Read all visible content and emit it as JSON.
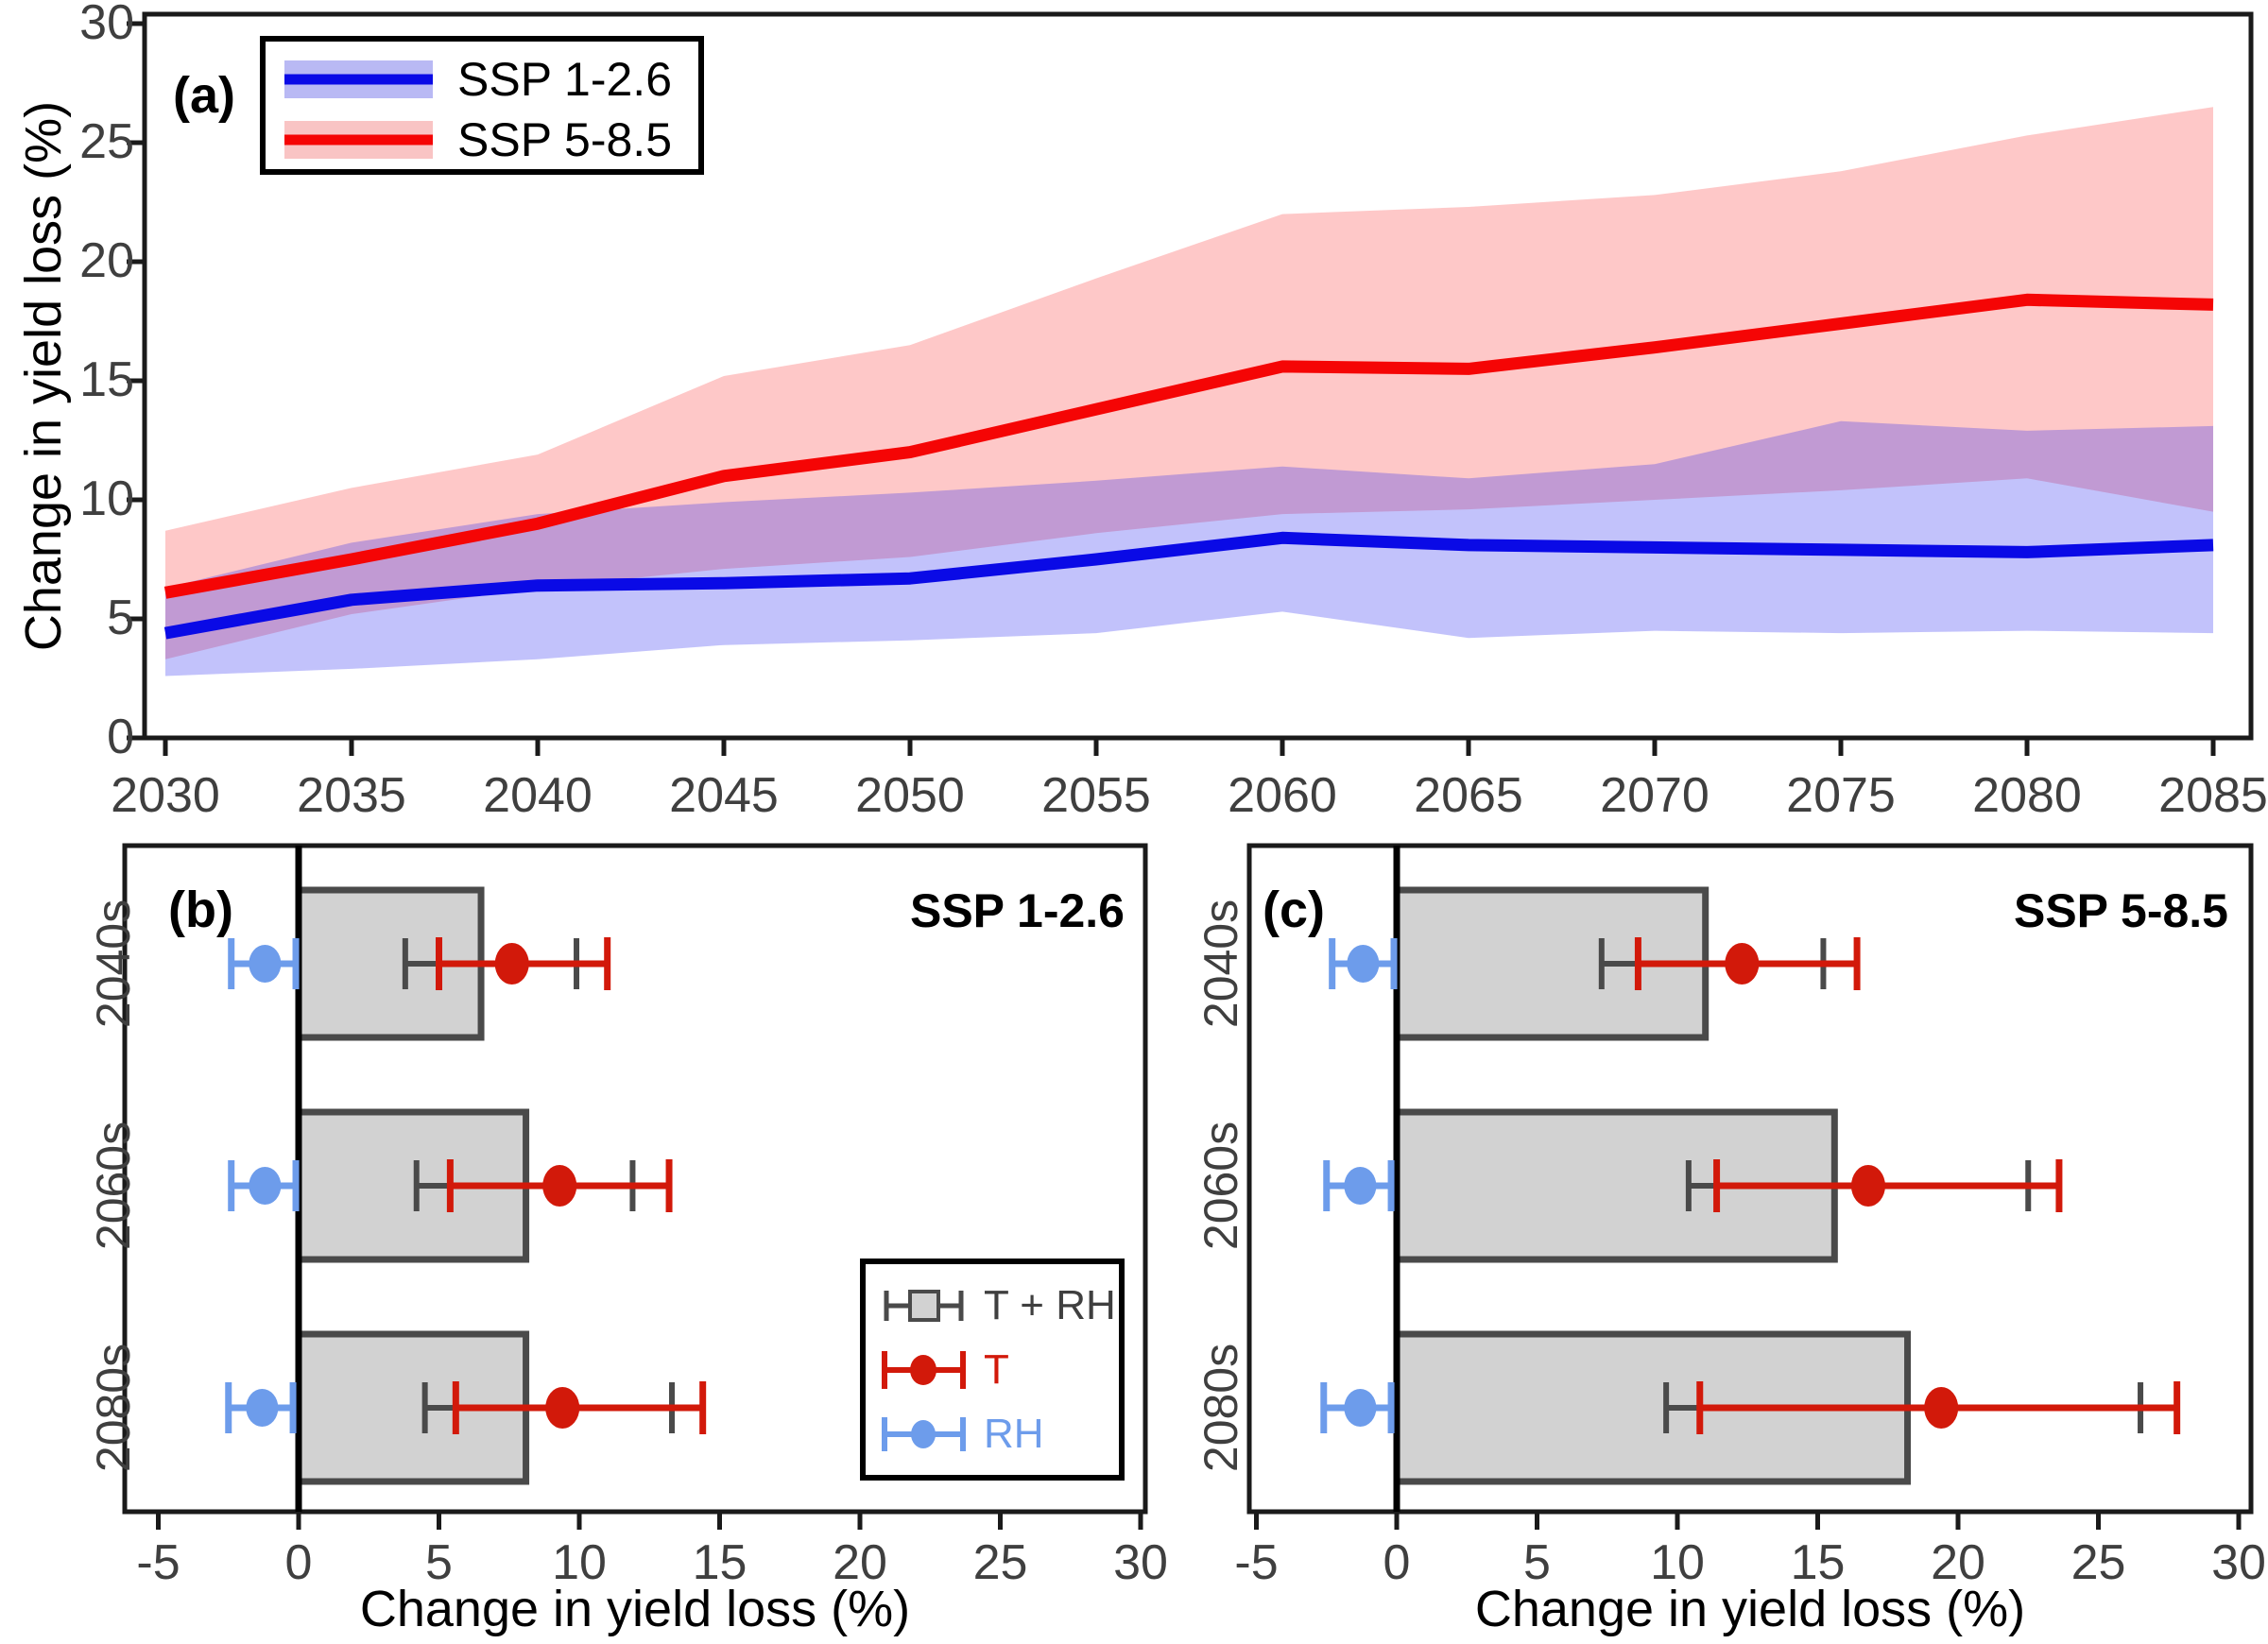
{
  "figure": {
    "background": "#ffffff",
    "ylabel_shared": "Change in yield loss (%)"
  },
  "colors": {
    "ssp126_line": "#0a0ae6",
    "ssp126_band": "rgba(30,30,240,0.27)",
    "ssp126_band_solid": "#b9b9f4",
    "ssp585_line": "#f50505",
    "ssp585_band": "rgba(250,25,25,0.24)",
    "ssp585_band_solid": "#f9c4c4",
    "bar_fill": "#d2d2d2",
    "bar_border": "#4a4a4a",
    "gray_whisker": "#4a4a4a",
    "t_color": "#d2190a",
    "rh_color": "#6d9ceb",
    "axis": "#1a1a1a",
    "tick_label": "#3f3f3f"
  },
  "chart_data": [
    {
      "id": "a",
      "type": "line-with-bands",
      "panel_label": "(a)",
      "ylabel": "Change in yield loss (%)",
      "x_ticks": [
        2030,
        2035,
        2040,
        2045,
        2050,
        2055,
        2060,
        2065,
        2070,
        2075,
        2080,
        2085
      ],
      "y_ticks": [
        0,
        5,
        10,
        15,
        20,
        25,
        30
      ],
      "xlim": [
        2029.4,
        2086.0
      ],
      "ylim": [
        0,
        30.4
      ],
      "grid": "off",
      "legend_position": "top-left",
      "x": [
        2030,
        2035,
        2040,
        2045,
        2050,
        2055,
        2060,
        2065,
        2070,
        2075,
        2080,
        2085
      ],
      "series": [
        {
          "name": "SSP 1-2.6",
          "center": [
            4.4,
            5.8,
            6.4,
            6.5,
            6.7,
            7.5,
            8.4,
            8.1,
            8.0,
            7.9,
            7.8,
            8.1
          ],
          "lower": [
            2.6,
            2.9,
            3.3,
            3.9,
            4.1,
            4.4,
            5.3,
            4.2,
            4.5,
            4.4,
            4.5,
            4.4
          ],
          "upper": [
            6.3,
            8.2,
            9.4,
            9.9,
            10.3,
            10.8,
            11.4,
            10.9,
            11.5,
            13.3,
            12.9,
            13.1
          ]
        },
        {
          "name": "SSP 5-8.5",
          "center": [
            6.1,
            7.5,
            9.0,
            11.0,
            12.0,
            13.8,
            15.6,
            15.5,
            16.4,
            17.4,
            18.4,
            18.2
          ],
          "lower": [
            3.3,
            5.2,
            6.3,
            7.1,
            7.6,
            8.6,
            9.4,
            9.6,
            10.0,
            10.4,
            10.9,
            9.5
          ],
          "upper": [
            8.7,
            10.5,
            11.9,
            15.2,
            16.5,
            19.3,
            22.0,
            22.3,
            22.8,
            23.8,
            25.3,
            26.5
          ]
        }
      ]
    },
    {
      "id": "b",
      "type": "bar-horizontal",
      "panel_label": "(b)",
      "title": "SSP 1-2.6",
      "xlabel": "Change in yield loss (%)",
      "x_ticks": [
        -5,
        0,
        5,
        10,
        15,
        20,
        25,
        30
      ],
      "xlim": [
        -6.2,
        30.2
      ],
      "categories": [
        "2040s",
        "2060s",
        "2080s"
      ],
      "bar_values": [
        6.5,
        8.1,
        8.1
      ],
      "bar_whiskers": [
        [
          3.8,
          9.9
        ],
        [
          4.2,
          11.9
        ],
        [
          4.5,
          13.3
        ]
      ],
      "t_values": [
        7.6,
        9.3,
        9.4
      ],
      "t_whiskers": [
        [
          5.0,
          11.0
        ],
        [
          5.4,
          13.2
        ],
        [
          5.6,
          14.4
        ]
      ],
      "rh_values": [
        -1.2,
        -1.2,
        -1.3
      ],
      "rh_whiskers": [
        [
          -2.4,
          -0.1
        ],
        [
          -2.4,
          -0.1
        ],
        [
          -2.5,
          -0.2
        ]
      ],
      "legend": {
        "items": [
          "T + RH",
          "T",
          "RH"
        ]
      }
    },
    {
      "id": "c",
      "type": "bar-horizontal",
      "panel_label": "(c)",
      "title": "SSP 5-8.5",
      "xlabel": "Change in yield loss (%)",
      "x_ticks": [
        -5,
        0,
        5,
        10,
        15,
        20,
        25,
        30
      ],
      "xlim": [
        -5.3,
        30.4
      ],
      "categories": [
        "2040s",
        "2060s",
        "2080s"
      ],
      "bar_values": [
        11.0,
        15.6,
        18.2
      ],
      "bar_whiskers": [
        [
          7.3,
          15.2
        ],
        [
          10.4,
          22.5
        ],
        [
          9.6,
          26.5
        ]
      ],
      "t_values": [
        12.3,
        16.8,
        19.4
      ],
      "t_whiskers": [
        [
          8.6,
          16.4
        ],
        [
          11.4,
          23.6
        ],
        [
          10.8,
          27.8
        ]
      ],
      "rh_values": [
        -1.2,
        -1.3,
        -1.3
      ],
      "rh_whiskers": [
        [
          -2.3,
          -0.1
        ],
        [
          -2.5,
          -0.2
        ],
        [
          -2.6,
          -0.2
        ]
      ]
    }
  ]
}
